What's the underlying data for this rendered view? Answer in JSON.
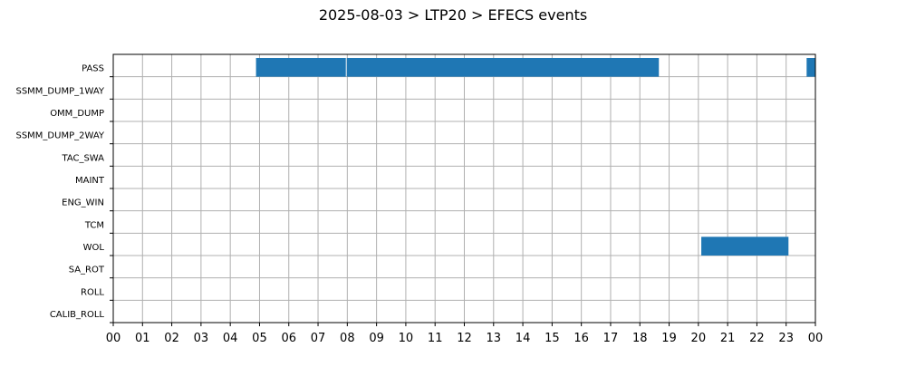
{
  "chart_data": {
    "type": "bar",
    "orientation": "horizontal",
    "title": "2025-08-03 > LTP20 > EFECS events",
    "xlabel": "",
    "ylabel": "",
    "xlim": [
      0,
      24
    ],
    "x_ticks": [
      "00",
      "01",
      "02",
      "03",
      "04",
      "05",
      "06",
      "07",
      "08",
      "09",
      "10",
      "11",
      "12",
      "13",
      "14",
      "15",
      "16",
      "17",
      "18",
      "19",
      "20",
      "21",
      "22",
      "23",
      "00"
    ],
    "categories": [
      "PASS",
      "SSMM_DUMP_1WAY",
      "OMM_DUMP",
      "SSMM_DUMP_2WAY",
      "TAC_SWA",
      "MAINT",
      "ENG_WIN",
      "TCM",
      "WOL",
      "SA_ROT",
      "ROLL",
      "CALIB_ROLL"
    ],
    "grid": true,
    "legend": "none",
    "bar_color": "#1f77b4",
    "events": [
      {
        "category": "PASS",
        "start": 4.88,
        "end": 7.95
      },
      {
        "category": "PASS",
        "start": 7.98,
        "end": 18.65
      },
      {
        "category": "PASS",
        "start": 23.7,
        "end": 24.0
      },
      {
        "category": "WOL",
        "start": 20.1,
        "end": 23.08
      }
    ]
  }
}
